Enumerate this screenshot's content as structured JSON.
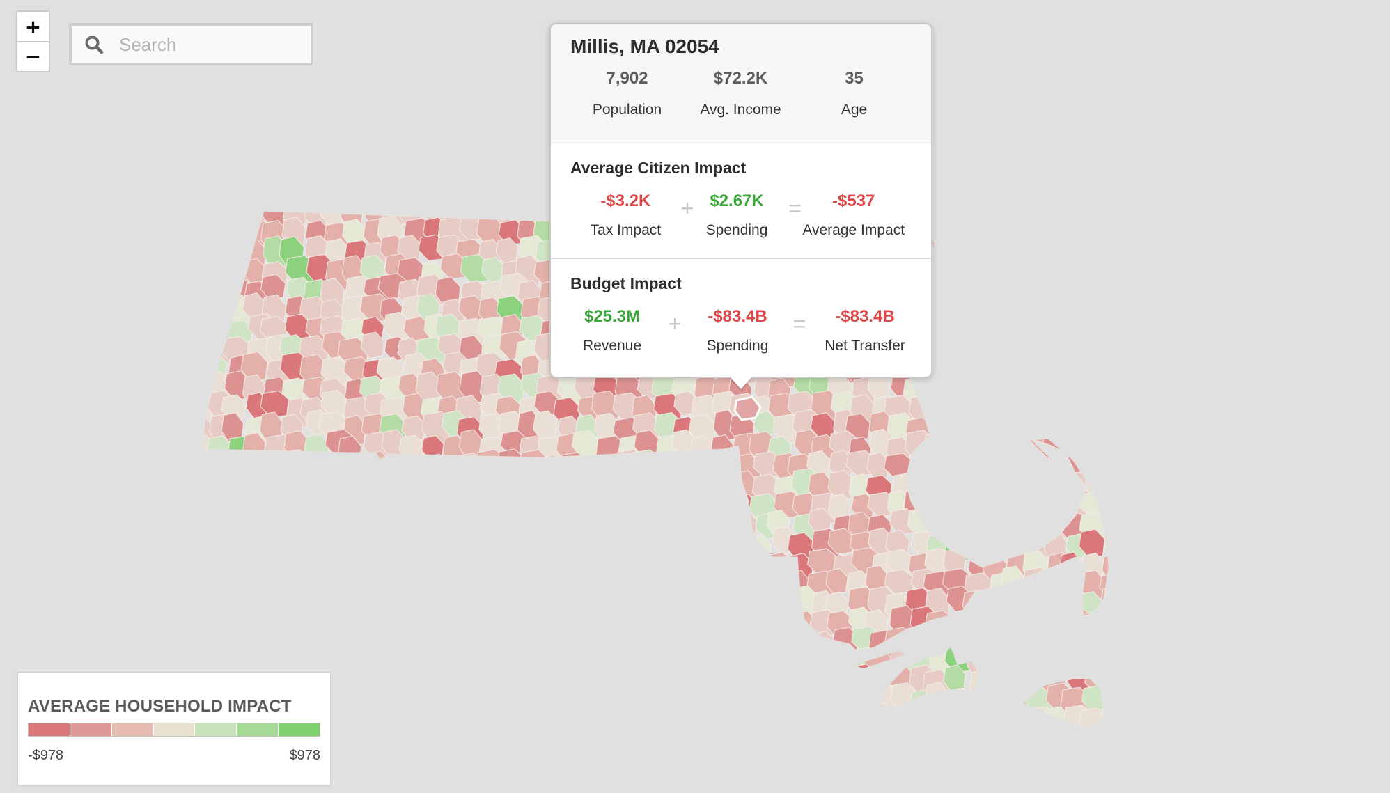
{
  "map": {
    "colors": [
      "#d9777a",
      "#dd9292",
      "#e3b0aa",
      "#e7ccc5",
      "#eadfd4",
      "#e5e8d5",
      "#cfe4c4",
      "#b3dca4",
      "#8cd17e"
    ]
  },
  "zoom": {
    "in_label": "+",
    "out_label": "−"
  },
  "search": {
    "placeholder": "Search",
    "icon": "search-icon"
  },
  "popup": {
    "title": "Millis, MA 02054",
    "stats": [
      {
        "value": "7,902",
        "label": "Population"
      },
      {
        "value": "$72.2K",
        "label": "Avg. Income"
      },
      {
        "value": "35",
        "label": "Age"
      }
    ],
    "citizen_impact": {
      "title": "Average Citizen Impact",
      "tax_impact": {
        "value": "-$3.2K",
        "label": "Tax Impact"
      },
      "spending": {
        "value": "$2.67K",
        "label": "Spending"
      },
      "average_impact": {
        "value": "-$537",
        "label": "Average Impact"
      },
      "plus": "+",
      "equals": "="
    },
    "budget_impact": {
      "title": "Budget Impact",
      "revenue": {
        "value": "$25.3M",
        "label": "Revenue"
      },
      "spending": {
        "value": "-$83.4B",
        "label": "Spending"
      },
      "net_transfer": {
        "value": "-$83.4B",
        "label": "Net Transfer"
      },
      "plus": "+",
      "equals": "="
    }
  },
  "legend": {
    "title": "AVERAGE HOUSEHOLD IMPACT",
    "min": "-$978",
    "max": "$978",
    "colors": [
      "#d9777a",
      "#dd9a96",
      "#e4bab1",
      "#e9e2d1",
      "#c6e2b8",
      "#a5d996",
      "#7fd06f"
    ]
  }
}
